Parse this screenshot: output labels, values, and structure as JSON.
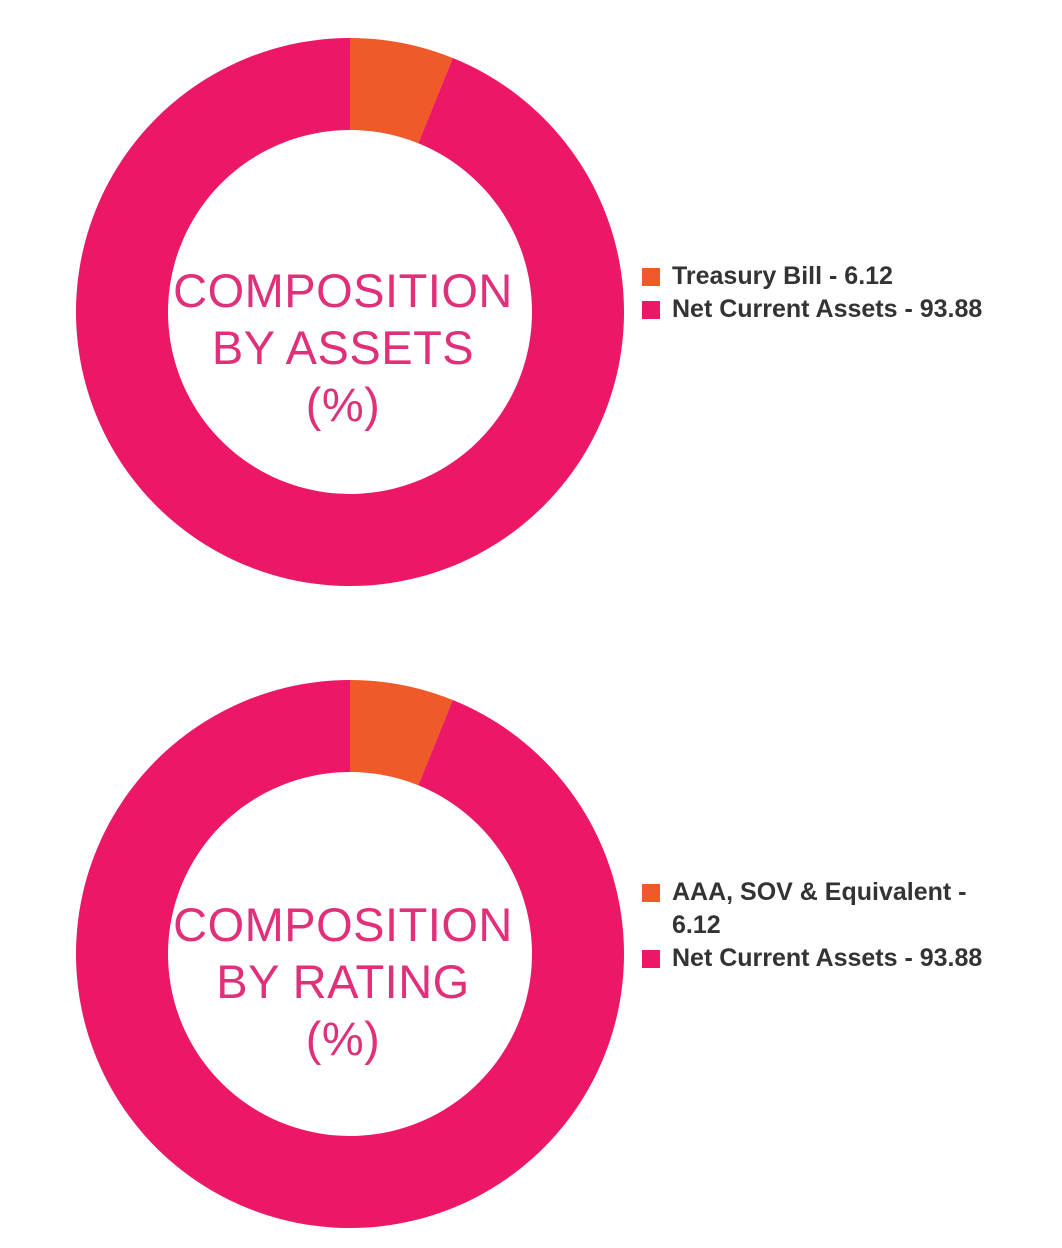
{
  "colors": {
    "primary": "#ec1766",
    "secondary": "#f05a28",
    "label": "#e0307a",
    "legend_text": "#333333"
  },
  "chart_data": [
    {
      "type": "pie",
      "variant": "donut",
      "center_text": [
        "COMPOSITION",
        "BY ASSETS",
        "(%)"
      ],
      "legend_placement": "right",
      "slices": [
        {
          "label": "Treasury Bill - 6.12",
          "name": "Treasury Bill",
          "value": 6.12,
          "color": "#f05a28"
        },
        {
          "label": "Net Current Assets - 93.88",
          "name": "Net Current Assets",
          "value": 93.88,
          "color": "#ec1766"
        }
      ]
    },
    {
      "type": "pie",
      "variant": "donut",
      "center_text": [
        "COMPOSITION",
        "BY RATING",
        "(%)"
      ],
      "legend_placement": "right",
      "slices": [
        {
          "label": "AAA, SOV & Equivalent - 6.12",
          "name": "AAA, SOV & Equivalent",
          "value": 6.12,
          "color": "#f05a28"
        },
        {
          "label": "Net Current Assets - 93.88",
          "name": "Net Current Assets",
          "value": 93.88,
          "color": "#ec1766"
        }
      ]
    }
  ]
}
